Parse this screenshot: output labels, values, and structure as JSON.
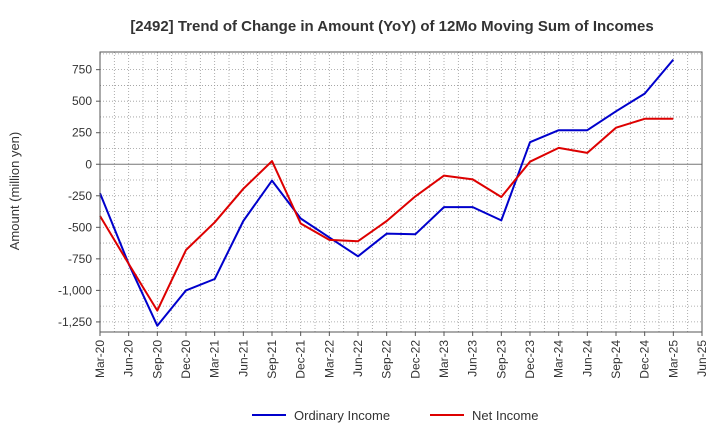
{
  "chart_data": {
    "type": "line",
    "title": "[2492]  Trend of Change in Amount (YoY) of 12Mo Moving Sum of Incomes",
    "ylabel": "Amount (million yen)",
    "xlabel": "",
    "ylim": [
      -1330,
      890
    ],
    "yticks": [
      750,
      500,
      250,
      0,
      -250,
      -500,
      -750,
      -1000,
      -1250
    ],
    "ytick_labels": [
      "750",
      "500",
      "250",
      "0",
      "-250",
      "-500",
      "-750",
      "-1,000",
      "-1,250"
    ],
    "categories": [
      "Mar-20",
      "Jun-20",
      "Sep-20",
      "Dec-20",
      "Mar-21",
      "Jun-21",
      "Sep-21",
      "Dec-21",
      "Mar-22",
      "Jun-22",
      "Sep-22",
      "Dec-22",
      "Mar-23",
      "Jun-23",
      "Sep-23",
      "Dec-23",
      "Mar-24",
      "Jun-24",
      "Sep-24",
      "Dec-24",
      "Mar-25",
      "Jun-25"
    ],
    "grid": true,
    "legend_position": "bottom-center",
    "series": [
      {
        "name": "Ordinary Income",
        "color": "#0000cc",
        "values": [
          -230,
          -790,
          -1280,
          -1000,
          -910,
          -450,
          -130,
          -430,
          -580,
          -730,
          -550,
          -555,
          -340,
          -340,
          -445,
          175,
          270,
          270,
          420,
          560,
          830,
          null
        ]
      },
      {
        "name": "Net Income",
        "color": "#dd0000",
        "values": [
          -410,
          -790,
          -1160,
          -680,
          -460,
          -195,
          25,
          -470,
          -600,
          -610,
          -450,
          -255,
          -90,
          -120,
          -260,
          20,
          130,
          90,
          290,
          360,
          360,
          null
        ]
      }
    ]
  }
}
